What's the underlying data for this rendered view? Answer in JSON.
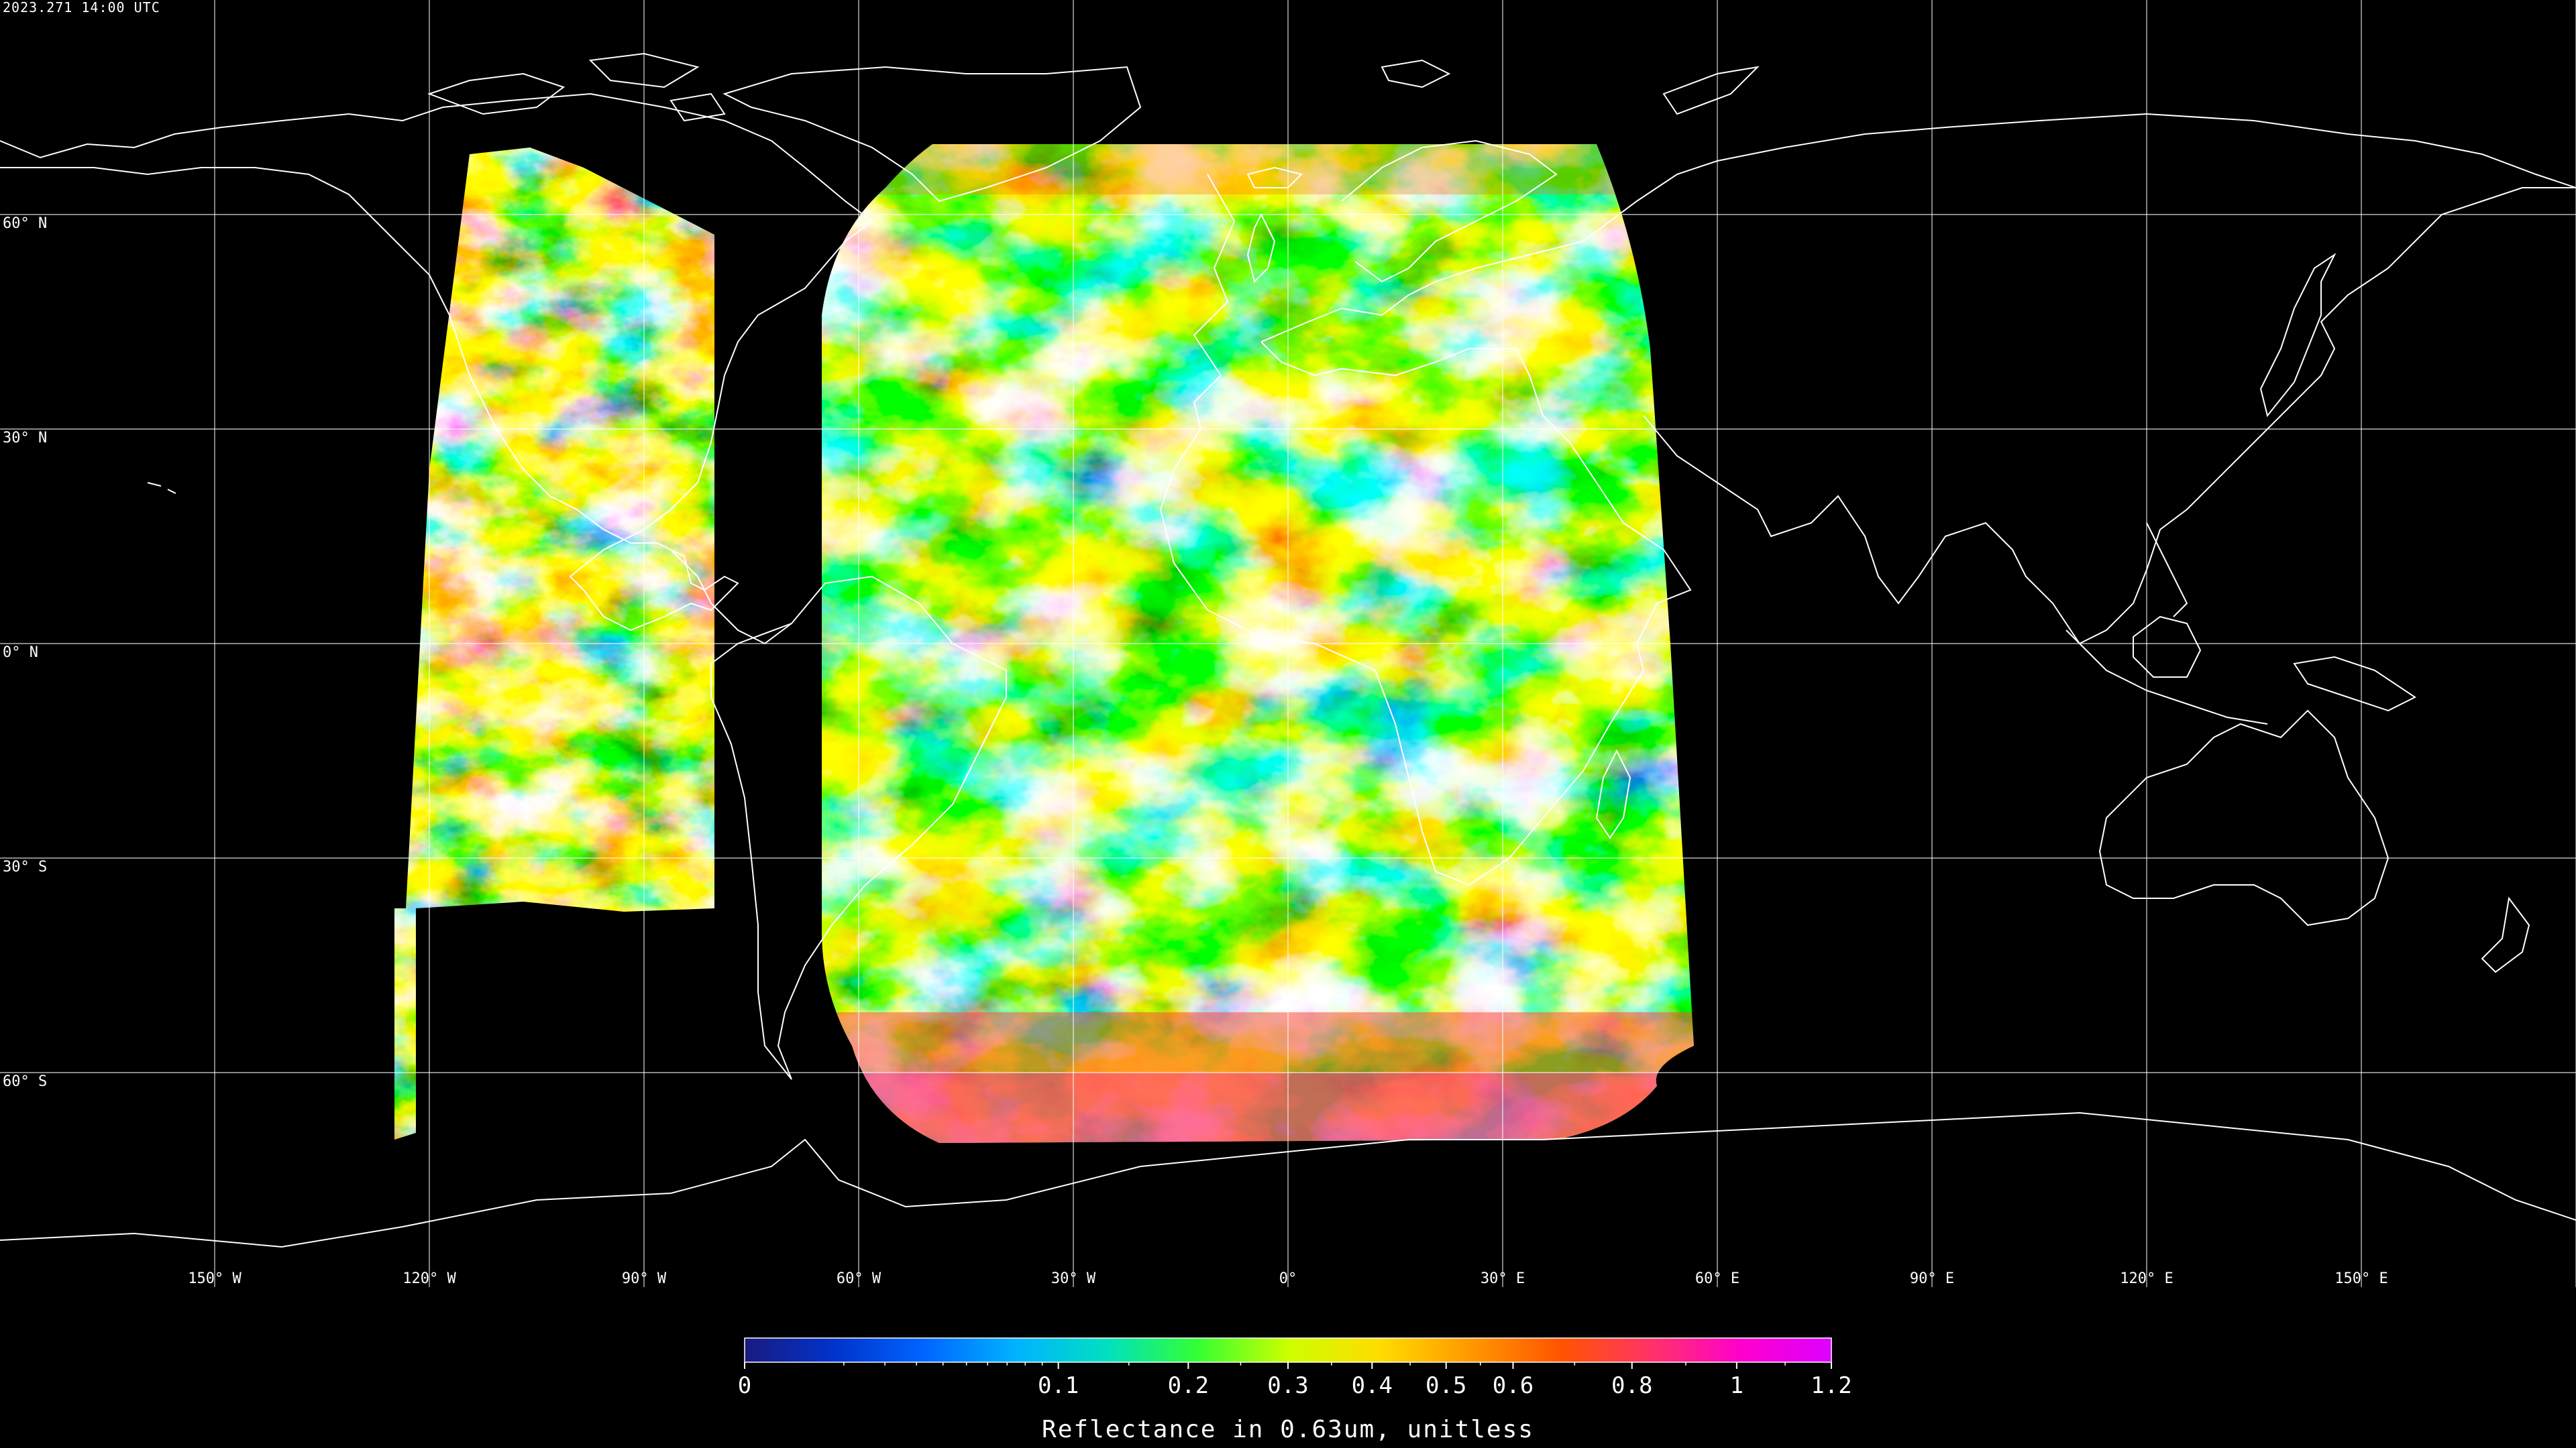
{
  "timestamp": "2023.271 14:00 UTC",
  "map": {
    "projection": "equirectangular",
    "graticule_spacing_deg": 30,
    "background_color": "#000000",
    "grid_color": "#ffffff",
    "coastline_color": "#ffffff",
    "lat_labels": [
      {
        "lat": 60,
        "text": "60° N"
      },
      {
        "lat": 30,
        "text": "30° N"
      },
      {
        "lat": 0,
        "text": "0° N"
      },
      {
        "lat": -30,
        "text": "30° S"
      },
      {
        "lat": -60,
        "text": "60° S"
      }
    ],
    "lon_labels": [
      {
        "lon": -150,
        "text": "150° W"
      },
      {
        "lon": -120,
        "text": "120° W"
      },
      {
        "lon": -90,
        "text": "90° W"
      },
      {
        "lon": -60,
        "text": "60° W"
      },
      {
        "lon": -30,
        "text": "30° W"
      },
      {
        "lon": 0,
        "text": "0°"
      },
      {
        "lon": 30,
        "text": "30° E"
      },
      {
        "lon": 60,
        "text": "60° E"
      },
      {
        "lon": 90,
        "text": "90° E"
      },
      {
        "lon": 120,
        "text": "120° E"
      },
      {
        "lon": 150,
        "text": "150° E"
      }
    ]
  },
  "colorbar": {
    "title": "Reflectance in 0.63um, unitless",
    "min": 0,
    "max": 1.2,
    "scale": "square-root",
    "colors": [
      "#1a1a80",
      "#0033cc",
      "#0066ff",
      "#00b3ff",
      "#00e0c0",
      "#33ff33",
      "#ccff00",
      "#ffdd00",
      "#ff9900",
      "#ff5500",
      "#ff3366",
      "#ff00cc",
      "#dd00ff"
    ],
    "tick_labels": [
      {
        "value": 0,
        "text": "0"
      },
      {
        "value": 0.1,
        "text": "0.1"
      },
      {
        "value": 0.2,
        "text": "0.2"
      },
      {
        "value": 0.3,
        "text": "0.3"
      },
      {
        "value": 0.4,
        "text": "0.4"
      },
      {
        "value": 0.5,
        "text": "0.5"
      },
      {
        "value": 0.6,
        "text": "0.6"
      },
      {
        "value": 0.8,
        "text": "0.8"
      },
      {
        "value": 1,
        "text": "1"
      },
      {
        "value": 1.2,
        "text": "1.2"
      }
    ]
  },
  "imagery": {
    "description_colors": [
      "#ff6600",
      "#ff3300",
      "#ffaa00",
      "#ccff00",
      "#33ff66",
      "#00ccff",
      "#0066ff",
      "#0033cc",
      "#ff00cc"
    ]
  }
}
